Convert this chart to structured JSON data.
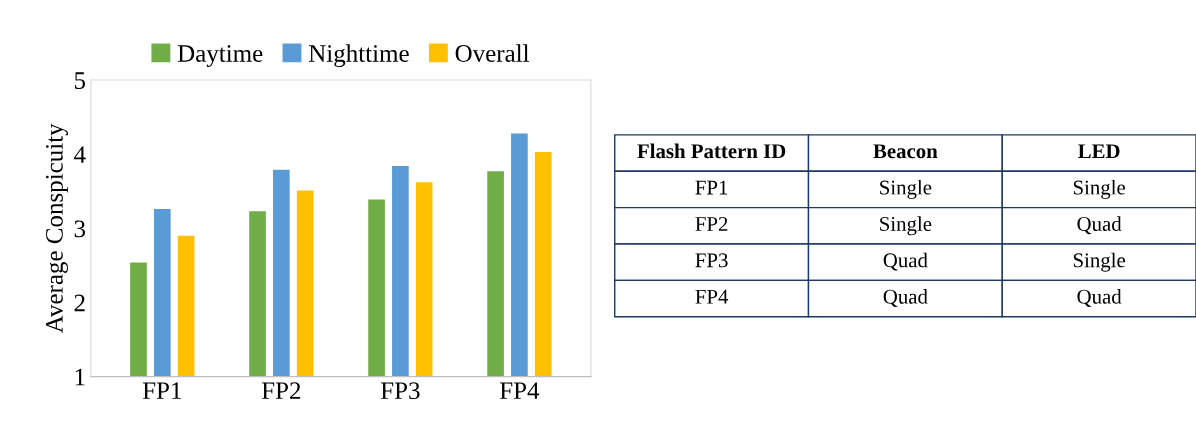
{
  "chart_data": [
    {
      "type": "bar",
      "ylabel": "Average Conspicuity",
      "categories": [
        "FP1",
        "FP2",
        "FP3",
        "FP4"
      ],
      "series": [
        {
          "name": "Daytime",
          "color": "#70ad47",
          "values": [
            2.54,
            3.23,
            3.39,
            3.77
          ]
        },
        {
          "name": "Nighttime",
          "color": "#5b9bd5",
          "values": [
            3.26,
            3.79,
            3.84,
            4.28
          ]
        },
        {
          "name": "Overall",
          "color": "#ffc000",
          "values": [
            2.9,
            3.51,
            3.62,
            4.03
          ]
        }
      ],
      "ylim": [
        1,
        5
      ],
      "yticks": [
        1,
        2,
        3,
        4,
        5
      ],
      "grid": false,
      "legend": "top"
    },
    {
      "type": "other",
      "categories": [
        "Flash Pattern ID",
        "Beacon",
        "LED"
      ],
      "y_categories": [
        "FP1",
        "FP2",
        "FP3",
        "FP4"
      ],
      "cell_labels": [
        [
          "Single",
          "Single"
        ],
        [
          "Single",
          "Quad"
        ],
        [
          "Quad",
          "Single"
        ],
        [
          "Quad",
          "Quad"
        ]
      ]
    }
  ]
}
